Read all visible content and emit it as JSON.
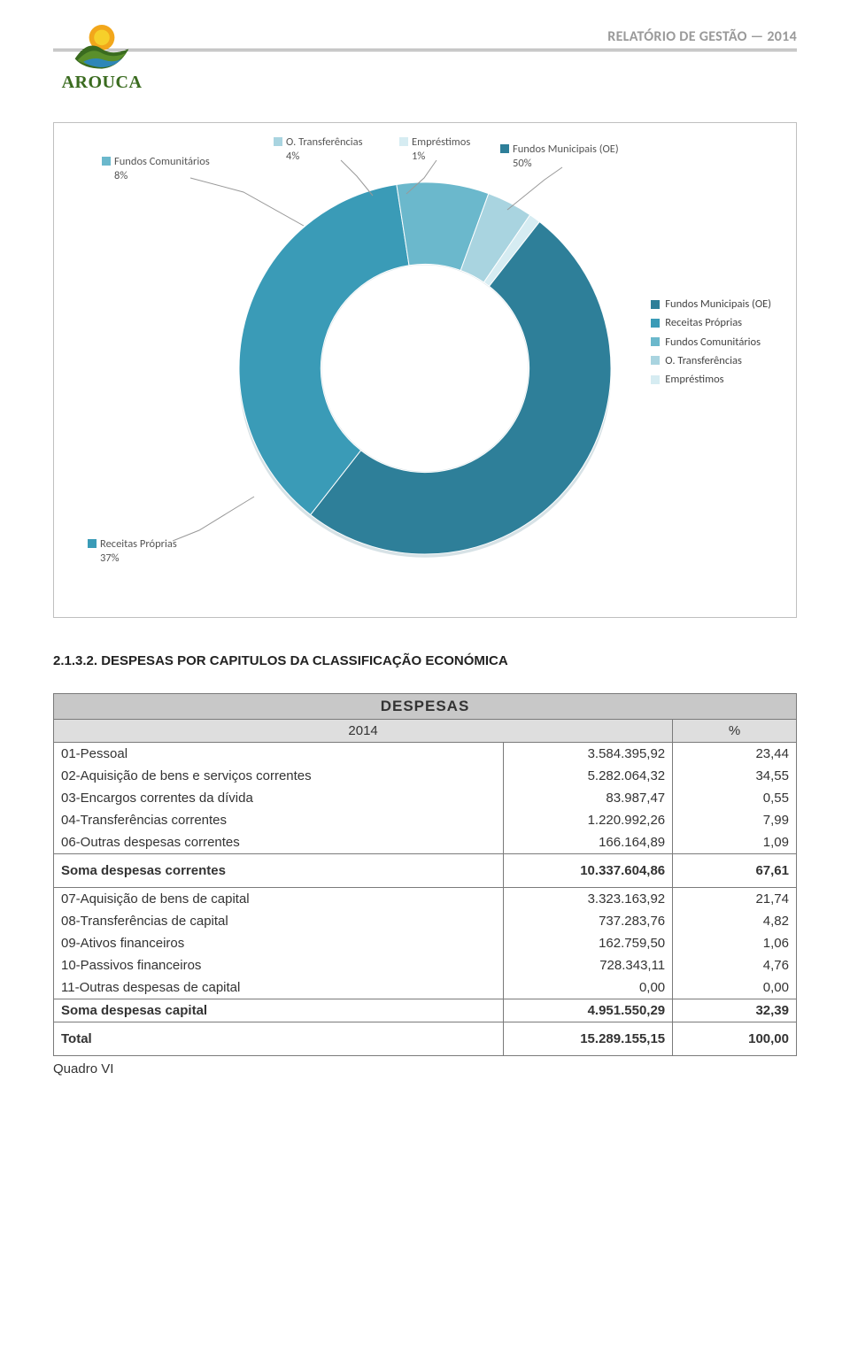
{
  "header": {
    "report_title": "RELATÓRIO DE GESTÃO — 2014",
    "logo_text": "AROUCA"
  },
  "chart": {
    "type": "donut",
    "background_color": "#ffffff",
    "border_color": "#bfbfbf",
    "inner_radius_ratio": 0.56,
    "slices": [
      {
        "key": "fundos_municipais",
        "label": "Fundos Municipais (OE)",
        "callout": "Fundos Municipais (OE)\n50%",
        "value": 50,
        "color": "#2e7f99"
      },
      {
        "key": "receitas_proprias",
        "label": "Receitas Próprias",
        "callout": "Receitas Próprias\n37%",
        "value": 37,
        "color": "#3a9bb7"
      },
      {
        "key": "fundos_comunitarios",
        "label": "Fundos Comunitários",
        "callout": "Fundos Comunitários\n8%",
        "value": 8,
        "color": "#6bb8cc"
      },
      {
        "key": "o_transferencias",
        "label": "O. Transferências",
        "callout": "O. Transferências\n4%",
        "value": 4,
        "color": "#a9d4e0"
      },
      {
        "key": "emprestimos",
        "label": "Empréstimos",
        "callout": "Empréstimos\n1%",
        "value": 1,
        "color": "#d6ecf2"
      }
    ],
    "start_angle_deg": 38,
    "callout_font_size": 12.5,
    "callout_color": "#555555",
    "legend": {
      "font_size": 12.5,
      "text_color": "#444444"
    }
  },
  "section": {
    "heading": "2.1.3.2. DESPESAS POR CAPITULOS DA CLASSIFICAÇÃO ECONÓMICA"
  },
  "table": {
    "title": "DESPESAS",
    "year": "2014",
    "pct_label": "%",
    "group_a": [
      {
        "label": "01-Pessoal",
        "value": "3.584.395,92",
        "pct": "23,44"
      },
      {
        "label": "02-Aquisição de bens e serviços correntes",
        "value": "5.282.064,32",
        "pct": "34,55"
      },
      {
        "label": "03-Encargos correntes da dívida",
        "value": "83.987,47",
        "pct": "0,55"
      },
      {
        "label": "04-Transferências correntes",
        "value": "1.220.992,26",
        "pct": "7,99"
      },
      {
        "label": "06-Outras despesas correntes",
        "value": "166.164,89",
        "pct": "1,09"
      }
    ],
    "subtotal_a": {
      "label": "Soma despesas correntes",
      "value": "10.337.604,86",
      "pct": "67,61"
    },
    "group_b": [
      {
        "label": "07-Aquisição de bens de capital",
        "value": "3.323.163,92",
        "pct": "21,74"
      },
      {
        "label": "08-Transferências de capital",
        "value": "737.283,76",
        "pct": "4,82"
      },
      {
        "label": "09-Ativos financeiros",
        "value": "162.759,50",
        "pct": "1,06"
      },
      {
        "label": "10-Passivos financeiros",
        "value": "728.343,11",
        "pct": "4,76"
      },
      {
        "label": "11-Outras despesas de capital",
        "value": "0,00",
        "pct": "0,00"
      }
    ],
    "subtotal_b": {
      "label": "Soma despesas capital",
      "value": "4.951.550,29",
      "pct": "32,39"
    },
    "total": {
      "label": "Total",
      "value": "15.289.155,15",
      "pct": "100,00"
    },
    "caption": "Quadro VI",
    "colors": {
      "head_bg": "#c8c8c8",
      "sub_bg": "#dedede",
      "border": "#7a7a7a"
    }
  }
}
